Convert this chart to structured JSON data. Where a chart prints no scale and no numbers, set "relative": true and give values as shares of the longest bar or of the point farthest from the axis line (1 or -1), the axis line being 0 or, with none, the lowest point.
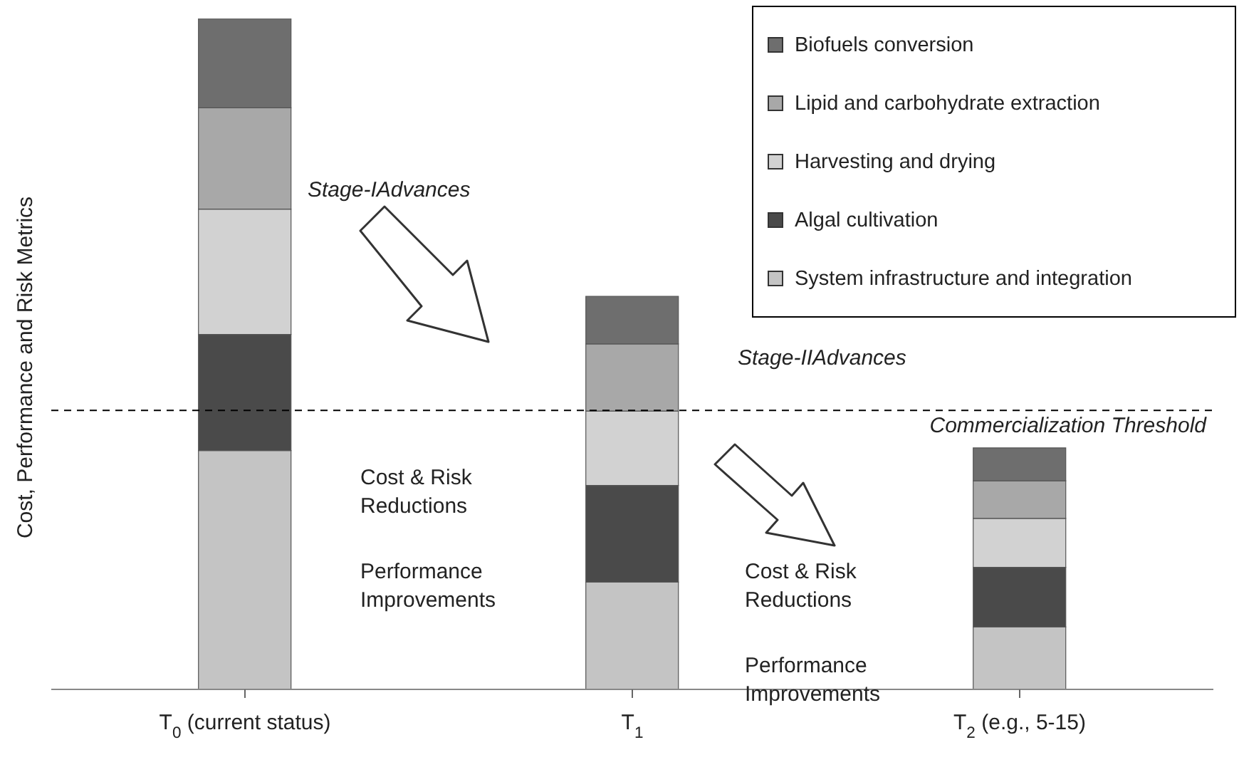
{
  "chart_data": {
    "type": "bar",
    "stacked": true,
    "relative": true,
    "ylabel": "Cost, Performance and Risk Metrics",
    "categories": [
      "T$_{0}$ (current status)",
      "T$_{1}$",
      "T$_{2}$ (e.g., 5-15)"
    ],
    "series": [
      {
        "name": "System infrastructure and integration",
        "color": "#c4c4c4",
        "values": [
          0.356,
          0.16,
          0.093
        ]
      },
      {
        "name": "Algal cultivation",
        "color": "#4a4a4a",
        "values": [
          0.173,
          0.144,
          0.089
        ]
      },
      {
        "name": "Harvesting and drying",
        "color": "#d2d2d2",
        "values": [
          0.187,
          0.111,
          0.073
        ]
      },
      {
        "name": "Lipid and carbohydrate extraction",
        "color": "#a8a8a8",
        "values": [
          0.151,
          0.1,
          0.056
        ]
      },
      {
        "name": "Biofuels conversion",
        "color": "#6e6e6e",
        "values": [
          0.133,
          0.071,
          0.049
        ]
      }
    ],
    "ref_lines": [
      {
        "axis": "y",
        "value": 0.416,
        "label": "Commercialization Threshold",
        "line_style": "dashed",
        "color": "#000000"
      }
    ],
    "annotations": [
      "Stage-IAdvances",
      "Stage-IIAdvances",
      "Cost & Risk Reductions",
      "Performance Improvements",
      "Cost & Risk Reductions",
      "Performance Improvements"
    ],
    "legend": "top right",
    "grid": false
  }
}
